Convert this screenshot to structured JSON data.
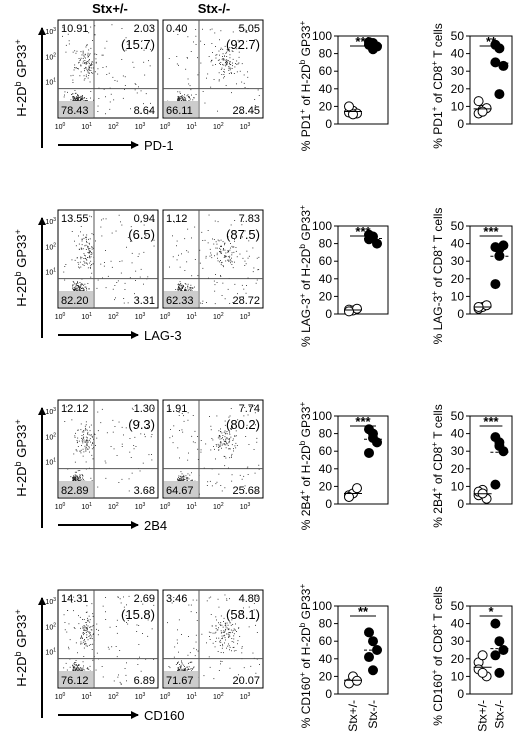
{
  "group_labels": [
    "Stx+/-",
    "Stx-/-"
  ],
  "flow_axis_base": "10",
  "flow_axis_exponents": [
    "0",
    "1",
    "2",
    "3"
  ],
  "rows": [
    {
      "y_label": [
        "H-2D",
        "b",
        " GP33",
        "+"
      ],
      "x_label": "PD-1",
      "plots": [
        {
          "upper_left": "10.91",
          "upper_right": "2.03",
          "upper_right_percent": "(15.7)",
          "lower_left": "78.43",
          "lower_right": "8.64"
        },
        {
          "upper_left": "0.40",
          "upper_right": "5.05",
          "upper_right_percent": "(92.7)",
          "lower_left": "66.11",
          "lower_right": "28.45"
        }
      ],
      "chart_data": [
        {
          "type": "scatter",
          "y_label": [
            "% PD1",
            "+",
            " of H-2D",
            "b",
            " GP33",
            "+"
          ],
          "significance": "***",
          "ylim": [
            0,
            100
          ],
          "yticks": [
            0,
            20,
            40,
            60,
            80,
            100
          ],
          "series": [
            {
              "marker": "open",
              "color": "#000000",
              "values": [
                13,
                15,
                12,
                20,
                11
              ]
            },
            {
              "marker": "filled",
              "color": "#000000",
              "values": [
                90,
                92,
                88,
                93,
                85
              ]
            }
          ]
        },
        {
          "type": "scatter",
          "y_label": [
            "% PD1",
            "+",
            " of CD8",
            "+",
            " T cells"
          ],
          "significance": "**",
          "ylim": [
            0,
            50
          ],
          "yticks": [
            0,
            10,
            20,
            30,
            40,
            50
          ],
          "series": [
            {
              "marker": "open",
              "color": "#000000",
              "values": [
                6,
                8,
                9,
                13,
                7
              ]
            },
            {
              "marker": "filled",
              "color": "#000000",
              "values": [
                45,
                43,
                33,
                35,
                17
              ]
            }
          ]
        }
      ]
    },
    {
      "y_label": [
        "H-2D",
        "b",
        " GP33",
        "+"
      ],
      "x_label": "LAG-3",
      "plots": [
        {
          "upper_left": "13.55",
          "upper_right": "0.94",
          "upper_right_percent": "(6.5)",
          "lower_left": "82.20",
          "lower_right": "3.31"
        },
        {
          "upper_left": "1.12",
          "upper_right": "7.83",
          "upper_right_percent": "(87.5)",
          "lower_left": "62.33",
          "lower_right": "28.72"
        }
      ],
      "chart_data": [
        {
          "type": "scatter",
          "y_label": [
            "% LAG-3",
            "+",
            " of H-2D",
            "b",
            " GP33",
            "+"
          ],
          "significance": "***",
          "ylim": [
            0,
            100
          ],
          "yticks": [
            0,
            20,
            40,
            60,
            80,
            100
          ],
          "series": [
            {
              "marker": "open",
              "color": "#000000",
              "values": [
                5,
                4,
                6,
                3
              ]
            },
            {
              "marker": "filled",
              "color": "#000000",
              "values": [
                85,
                88,
                80,
                90
              ]
            }
          ]
        },
        {
          "type": "scatter",
          "y_label": [
            "% LAG-3",
            "+",
            " of CD8",
            "+",
            " T cells"
          ],
          "significance": "***",
          "ylim": [
            0,
            50
          ],
          "yticks": [
            0,
            10,
            20,
            30,
            40,
            50
          ],
          "series": [
            {
              "marker": "open",
              "color": "#000000",
              "values": [
                3,
                4,
                5,
                4
              ]
            },
            {
              "marker": "filled",
              "color": "#000000",
              "values": [
                38,
                37,
                39,
                17,
                33
              ]
            }
          ]
        }
      ]
    },
    {
      "y_label": [
        "H-2D",
        "b",
        " GP33",
        "+"
      ],
      "x_label": "2B4",
      "plots": [
        {
          "upper_left": "12.12",
          "upper_right": "1.30",
          "upper_right_percent": "(9.3)",
          "lower_left": "82.89",
          "lower_right": "3.68"
        },
        {
          "upper_left": "1.91",
          "upper_right": "7.74",
          "upper_right_percent": "(80.2)",
          "lower_left": "64.67",
          "lower_right": "25.68"
        }
      ],
      "chart_data": [
        {
          "type": "scatter",
          "y_label": [
            "% 2B4",
            "+",
            " of H-2D",
            "b",
            " GP33",
            "+"
          ],
          "significance": "***",
          "ylim": [
            0,
            100
          ],
          "yticks": [
            0,
            20,
            40,
            60,
            80,
            100
          ],
          "series": [
            {
              "marker": "open",
              "color": "#000000",
              "values": [
                10,
                12,
                18,
                8
              ]
            },
            {
              "marker": "filled",
              "color": "#000000",
              "values": [
                85,
                80,
                70,
                58,
                75
              ]
            }
          ]
        },
        {
          "type": "scatter",
          "y_label": [
            "% 2B4",
            "+",
            " of CD8",
            "+",
            " T cells"
          ],
          "significance": "***",
          "ylim": [
            0,
            50
          ],
          "yticks": [
            0,
            10,
            20,
            30,
            40,
            50
          ],
          "series": [
            {
              "marker": "open",
              "color": "#000000",
              "values": [
                5,
                8,
                3,
                7,
                6
              ]
            },
            {
              "marker": "filled",
              "color": "#000000",
              "values": [
                38,
                35,
                30,
                11,
                33
              ]
            }
          ]
        }
      ]
    },
    {
      "y_label": [
        "H-2D",
        "b",
        " GP33",
        "+"
      ],
      "x_label": "CD160",
      "plots": [
        {
          "upper_left": "14.31",
          "upper_right": "2.69",
          "upper_right_percent": "(15.8)",
          "lower_left": "76.12",
          "lower_right": "6.89"
        },
        {
          "upper_left": "3.46",
          "upper_right": "4.80",
          "upper_right_percent": "(58.1)",
          "lower_left": "71.67",
          "lower_right": "20.07"
        }
      ],
      "chart_data": [
        {
          "type": "scatter",
          "y_label": [
            "% CD160",
            "+",
            " of H-2D",
            "b",
            " GP33",
            "+"
          ],
          "significance": "**",
          "ylim": [
            0,
            100
          ],
          "yticks": [
            0,
            20,
            40,
            60,
            80,
            100
          ],
          "series": [
            {
              "marker": "open",
              "color": "#000000",
              "values": [
                12,
                20,
                15
              ]
            },
            {
              "marker": "filled",
              "color": "#000000",
              "values": [
                70,
                60,
                50,
                42,
                27
              ]
            }
          ]
        },
        {
          "type": "scatter",
          "y_label": [
            "% CD160",
            "+",
            " of CD8",
            "+",
            " T cells"
          ],
          "significance": "*",
          "ylim": [
            0,
            50
          ],
          "yticks": [
            0,
            10,
            20,
            30,
            40,
            50
          ],
          "series": [
            {
              "marker": "open",
              "color": "#000000",
              "values": [
                18,
                22,
                10,
                14,
                12
              ]
            },
            {
              "marker": "filled",
              "color": "#000000",
              "values": [
                40,
                30,
                25,
                22,
                12
              ]
            }
          ]
        }
      ]
    }
  ]
}
